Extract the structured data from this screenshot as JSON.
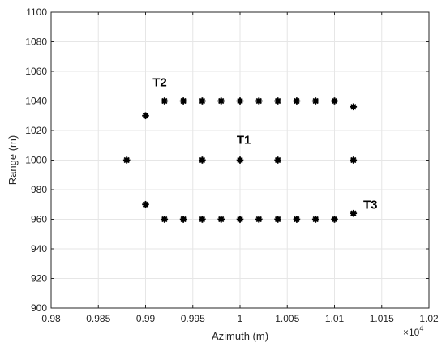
{
  "chart_data": {
    "type": "scatter",
    "title": "",
    "xlabel": "Azimuth (m)",
    "ylabel": "Range (m)",
    "x_exponent_label": "×10",
    "x_exponent_power": "4",
    "xlim": [
      9800,
      10200
    ],
    "ylim": [
      900,
      1100
    ],
    "x_ticks": [
      9800,
      9850,
      9900,
      9950,
      10000,
      10050,
      10100,
      10150,
      10200
    ],
    "x_tick_labels": [
      "0.98",
      "0.985",
      "0.99",
      "0.995",
      "1",
      "1.005",
      "1.01",
      "1.015",
      "1.02"
    ],
    "y_ticks": [
      900,
      920,
      940,
      960,
      980,
      1000,
      1020,
      1040,
      1060,
      1080,
      1100
    ],
    "y_tick_labels": [
      "900",
      "920",
      "940",
      "960",
      "980",
      "1000",
      "1020",
      "1040",
      "1060",
      "1080",
      "1100"
    ],
    "grid": true,
    "marker_color": "#000000",
    "points": [
      {
        "x": 9880,
        "y": 1000
      },
      {
        "x": 9900,
        "y": 1030
      },
      {
        "x": 9900,
        "y": 970
      },
      {
        "x": 9920,
        "y": 1040
      },
      {
        "x": 9940,
        "y": 1040
      },
      {
        "x": 9960,
        "y": 1040
      },
      {
        "x": 9980,
        "y": 1040
      },
      {
        "x": 10000,
        "y": 1040
      },
      {
        "x": 10020,
        "y": 1040
      },
      {
        "x": 10040,
        "y": 1040
      },
      {
        "x": 10060,
        "y": 1040
      },
      {
        "x": 10080,
        "y": 1040
      },
      {
        "x": 10100,
        "y": 1040
      },
      {
        "x": 10120,
        "y": 1036
      },
      {
        "x": 9960,
        "y": 1000
      },
      {
        "x": 10000,
        "y": 1000
      },
      {
        "x": 10040,
        "y": 1000
      },
      {
        "x": 10120,
        "y": 1000
      },
      {
        "x": 9920,
        "y": 960
      },
      {
        "x": 9940,
        "y": 960
      },
      {
        "x": 9960,
        "y": 960
      },
      {
        "x": 9980,
        "y": 960
      },
      {
        "x": 10000,
        "y": 960
      },
      {
        "x": 10020,
        "y": 960
      },
      {
        "x": 10040,
        "y": 960
      },
      {
        "x": 10060,
        "y": 960
      },
      {
        "x": 10080,
        "y": 960
      },
      {
        "x": 10100,
        "y": 960
      },
      {
        "x": 10120,
        "y": 964
      }
    ],
    "annotations": [
      {
        "text": "T2",
        "x": 9915,
        "y": 1050
      },
      {
        "text": "T1",
        "x": 10004,
        "y": 1011
      },
      {
        "text": "T3",
        "x": 10138,
        "y": 967
      }
    ]
  }
}
